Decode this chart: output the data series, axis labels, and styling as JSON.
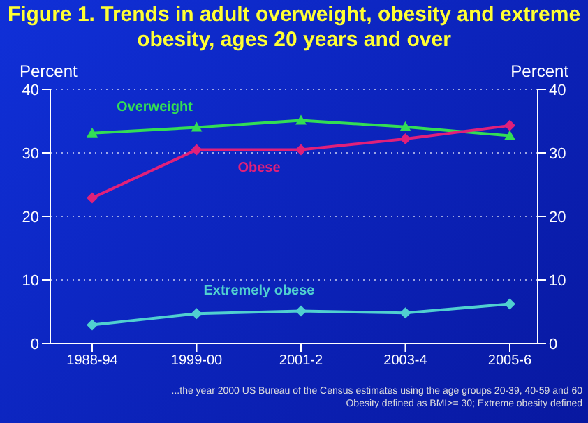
{
  "chart_data": {
    "type": "line",
    "title": "Figure 1. Trends in adult overweight, obesity and extreme obesity, ages 20 years and over",
    "ylabel": "Percent",
    "y2label": "Percent",
    "categories": [
      "1988-94",
      "1999-00",
      "2001-2",
      "2003-4",
      "2005-6"
    ],
    "ylim": [
      0,
      40
    ],
    "yticks": [
      0,
      10,
      20,
      30,
      40
    ],
    "y2lim": [
      0,
      40
    ],
    "y2ticks": [
      0,
      10,
      20,
      30,
      40
    ],
    "grid": "y",
    "series": [
      {
        "name": "Overweight",
        "color": "#33dd55",
        "marker": "triangle",
        "values": [
          33.1,
          34.0,
          35.1,
          34.1,
          32.7
        ]
      },
      {
        "name": "Obese",
        "color": "#e0207a",
        "marker": "diamond",
        "values": [
          22.9,
          30.5,
          30.5,
          32.2,
          34.3
        ]
      },
      {
        "name": "Extremely obese",
        "color": "#50d0d0",
        "marker": "diamond",
        "values": [
          2.9,
          4.7,
          5.1,
          4.8,
          6.2
        ]
      }
    ],
    "annotations": [
      "...the year 2000 US Bureau of the Census estimates using the age groups 20-39, 40-59 and 60",
      "Obesity defined as BMI>= 30; Extreme obesity defined"
    ]
  }
}
